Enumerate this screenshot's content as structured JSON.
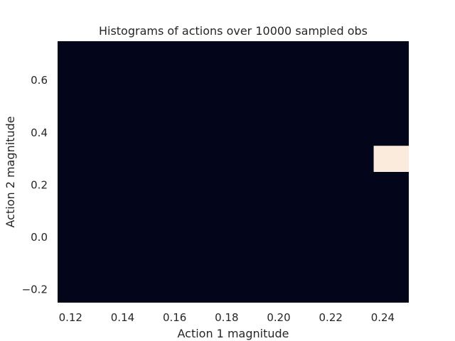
{
  "chart_data": {
    "type": "heatmap",
    "title": "Histograms of actions over 10000 sampled obs",
    "xlabel": "Action 1 magnitude",
    "ylabel": "Action 2 magnitude",
    "xlim": [
      0.115,
      0.25
    ],
    "ylim": [
      -0.25,
      0.75
    ],
    "x_ticks": [
      0.12,
      0.14,
      0.16,
      0.18,
      0.2,
      0.22,
      0.24
    ],
    "x_tick_labels": [
      "0.12",
      "0.14",
      "0.16",
      "0.18",
      "0.20",
      "0.22",
      "0.24"
    ],
    "y_ticks": [
      -0.2,
      0.0,
      0.2,
      0.4,
      0.6
    ],
    "y_tick_labels": [
      "−0.2",
      "0.0",
      "0.2",
      "0.4",
      "0.6"
    ],
    "grid": false,
    "background_color": "#03051a",
    "cells": [
      {
        "x0": 0.2365,
        "x1": 0.25,
        "y0": 0.25,
        "y1": 0.35,
        "color": "#faebdd"
      }
    ]
  }
}
